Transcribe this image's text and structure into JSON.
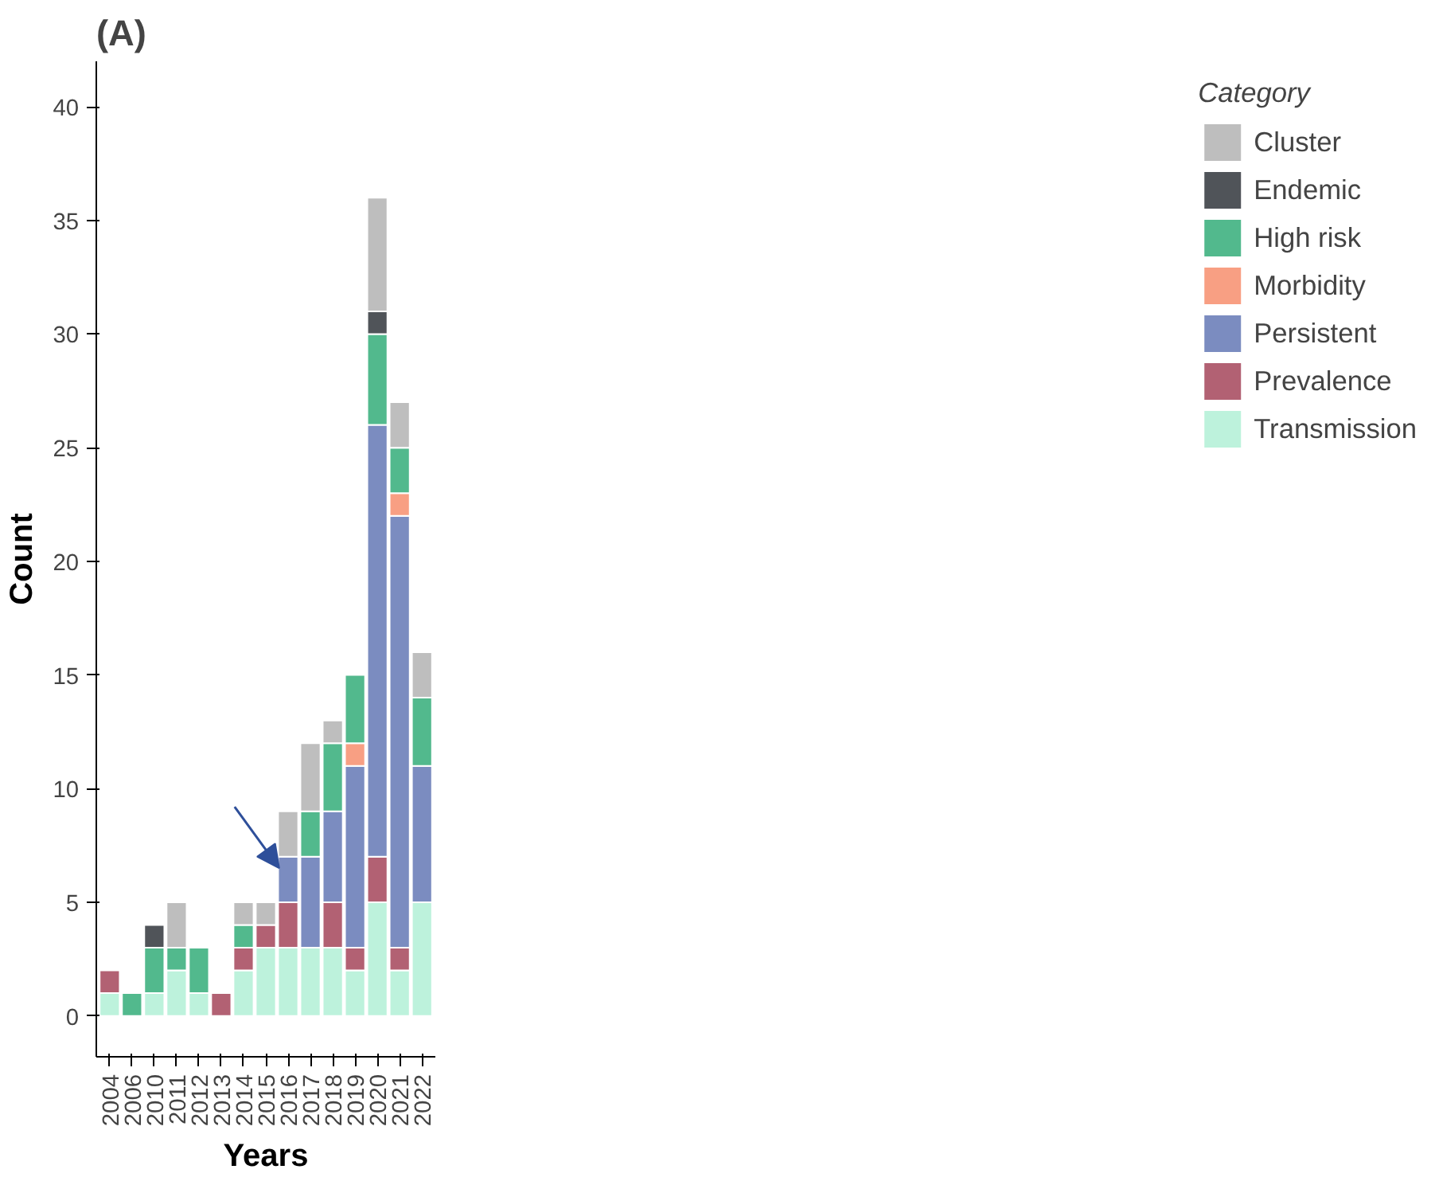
{
  "chart_data": {
    "type": "bar",
    "stacked": true,
    "title": "(A)",
    "xlabel": "Years",
    "ylabel": "Count",
    "legend_title": "Category",
    "legend": "right",
    "grid": false,
    "ylim": [
      -1.8,
      42
    ],
    "yticks": [
      0,
      5,
      10,
      15,
      20,
      25,
      30,
      35,
      40
    ],
    "categories": [
      "2004",
      "2006",
      "2010",
      "2011",
      "2012",
      "2013",
      "2014",
      "2015",
      "2016",
      "2017",
      "2018",
      "2019",
      "2020",
      "2021",
      "2022"
    ],
    "series": [
      {
        "name": "Transmission",
        "color": "#bdf2dc",
        "values": [
          1,
          null,
          1,
          2,
          1,
          null,
          2,
          3,
          3,
          3,
          3,
          2,
          5,
          2,
          5
        ]
      },
      {
        "name": "Prevalence",
        "color": "#b26173",
        "values": [
          1,
          null,
          null,
          null,
          null,
          1,
          1,
          1,
          2,
          null,
          2,
          1,
          2,
          1,
          null
        ]
      },
      {
        "name": "Persistent",
        "color": "#7b8cc0",
        "values": [
          null,
          null,
          null,
          null,
          null,
          null,
          null,
          null,
          2,
          4,
          4,
          8,
          19,
          19,
          6
        ]
      },
      {
        "name": "Morbidity",
        "color": "#f89f83",
        "values": [
          null,
          null,
          null,
          null,
          null,
          null,
          null,
          null,
          null,
          null,
          null,
          1,
          null,
          1,
          null
        ]
      },
      {
        "name": "High risk",
        "color": "#52b98d",
        "values": [
          null,
          1,
          2,
          1,
          2,
          null,
          1,
          null,
          null,
          2,
          3,
          3,
          4,
          2,
          3
        ]
      },
      {
        "name": "Endemic",
        "color": "#505459",
        "values": [
          null,
          null,
          1,
          null,
          null,
          null,
          null,
          null,
          null,
          null,
          null,
          null,
          1,
          null,
          null
        ]
      },
      {
        "name": "Cluster",
        "color": "#bebebe",
        "values": [
          null,
          null,
          null,
          2,
          null,
          null,
          1,
          1,
          2,
          3,
          1,
          null,
          5,
          2,
          2
        ]
      }
    ]
  }
}
